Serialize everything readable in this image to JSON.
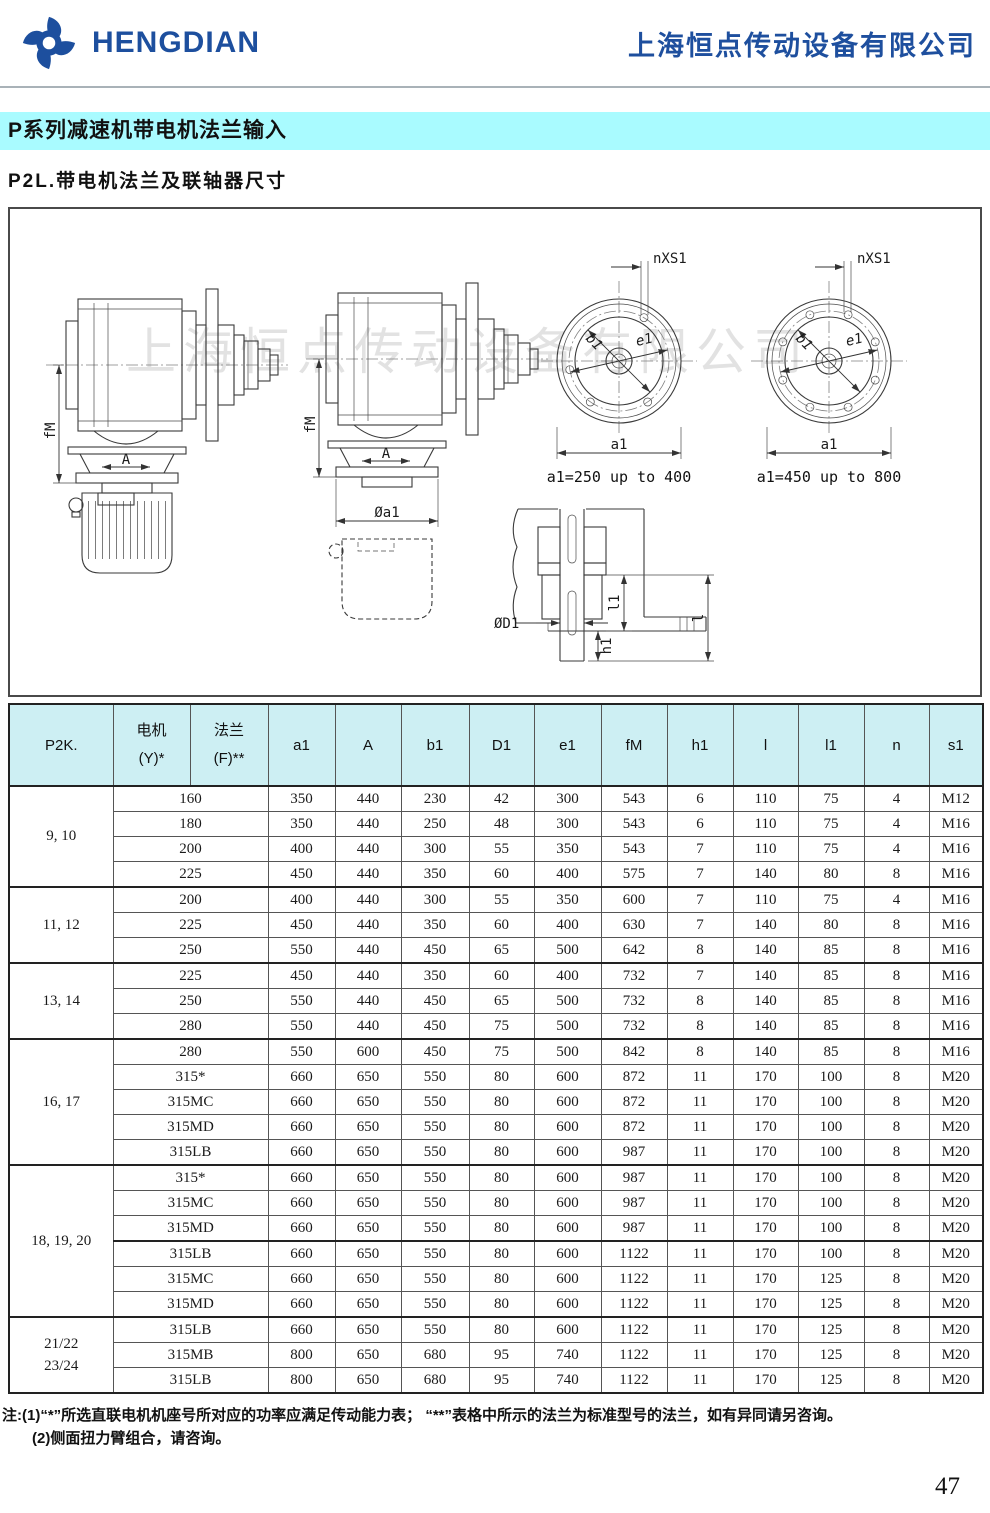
{
  "header": {
    "brand": "HENGDIAN",
    "company": "上海恒点传动设备有限公司"
  },
  "titles": {
    "banner": "P系列减速机带电机法兰输入",
    "subtitle": "P2L.带电机法兰及联轴器尺寸"
  },
  "diagram": {
    "watermark": "上海恒点传动设备有限公司",
    "labels": {
      "fM": "fM",
      "A": "A",
      "phi_a1": "Øa1",
      "nXS1": "nXS1",
      "b1": "b1",
      "e1": "e1",
      "a1": "a1",
      "phi_D1": "ØD1",
      "l1": "l1",
      "l": "l",
      "h1": "h1"
    },
    "captions": {
      "left": "a1=250 up to 400",
      "right": "a1=450 up to 800"
    }
  },
  "table": {
    "headers": {
      "p2k": "P2K.",
      "motor_line1": "电机",
      "motor_line2": "(Y)*",
      "flange_line1": "法兰",
      "flange_line2": "(F)**",
      "dims": [
        "a1",
        "A",
        "b1",
        "D1",
        "e1",
        "fM",
        "h1",
        "l",
        "l1",
        "n",
        "s1"
      ]
    },
    "groups": [
      {
        "label": "9, 10",
        "rows": [
          [
            "160",
            "350",
            "440",
            "230",
            "42",
            "300",
            "543",
            "6",
            "110",
            "75",
            "4",
            "M12"
          ],
          [
            "180",
            "350",
            "440",
            "250",
            "48",
            "300",
            "543",
            "6",
            "110",
            "75",
            "4",
            "M16"
          ],
          [
            "200",
            "400",
            "440",
            "300",
            "55",
            "350",
            "543",
            "7",
            "110",
            "75",
            "4",
            "M16"
          ],
          [
            "225",
            "450",
            "440",
            "350",
            "60",
            "400",
            "575",
            "7",
            "140",
            "80",
            "8",
            "M16"
          ]
        ]
      },
      {
        "label": "11, 12",
        "rows": [
          [
            "200",
            "400",
            "440",
            "300",
            "55",
            "350",
            "600",
            "7",
            "110",
            "75",
            "4",
            "M16"
          ],
          [
            "225",
            "450",
            "440",
            "350",
            "60",
            "400",
            "630",
            "7",
            "140",
            "80",
            "8",
            "M16"
          ],
          [
            "250",
            "550",
            "440",
            "450",
            "65",
            "500",
            "642",
            "8",
            "140",
            "85",
            "8",
            "M16"
          ]
        ]
      },
      {
        "label": "13, 14",
        "rows": [
          [
            "225",
            "450",
            "440",
            "350",
            "60",
            "400",
            "732",
            "7",
            "140",
            "85",
            "8",
            "M16"
          ],
          [
            "250",
            "550",
            "440",
            "450",
            "65",
            "500",
            "732",
            "8",
            "140",
            "85",
            "8",
            "M16"
          ],
          [
            "280",
            "550",
            "440",
            "450",
            "75",
            "500",
            "732",
            "8",
            "140",
            "85",
            "8",
            "M16"
          ]
        ]
      },
      {
        "label": "16, 17",
        "rows": [
          [
            "280",
            "550",
            "600",
            "450",
            "75",
            "500",
            "842",
            "8",
            "140",
            "85",
            "8",
            "M16"
          ],
          [
            "315*",
            "660",
            "650",
            "550",
            "80",
            "600",
            "872",
            "11",
            "170",
            "100",
            "8",
            "M20"
          ],
          [
            "315MC",
            "660",
            "650",
            "550",
            "80",
            "600",
            "872",
            "11",
            "170",
            "100",
            "8",
            "M20"
          ],
          [
            "315MD",
            "660",
            "650",
            "550",
            "80",
            "600",
            "872",
            "11",
            "170",
            "100",
            "8",
            "M20"
          ],
          [
            "315LB",
            "660",
            "650",
            "550",
            "80",
            "600",
            "987",
            "11",
            "170",
            "100",
            "8",
            "M20"
          ]
        ]
      },
      {
        "label": "18, 19, 20",
        "divider_after": 2,
        "rows": [
          [
            "315*",
            "660",
            "650",
            "550",
            "80",
            "600",
            "987",
            "11",
            "170",
            "100",
            "8",
            "M20"
          ],
          [
            "315MC",
            "660",
            "650",
            "550",
            "80",
            "600",
            "987",
            "11",
            "170",
            "100",
            "8",
            "M20"
          ],
          [
            "315MD",
            "660",
            "650",
            "550",
            "80",
            "600",
            "987",
            "11",
            "170",
            "100",
            "8",
            "M20"
          ],
          [
            "315LB",
            "660",
            "650",
            "550",
            "80",
            "600",
            "1122",
            "11",
            "170",
            "100",
            "8",
            "M20"
          ],
          [
            "315MC",
            "660",
            "650",
            "550",
            "80",
            "600",
            "1122",
            "11",
            "170",
            "125",
            "8",
            "M20"
          ],
          [
            "315MD",
            "660",
            "650",
            "550",
            "80",
            "600",
            "1122",
            "11",
            "170",
            "125",
            "8",
            "M20"
          ]
        ]
      },
      {
        "label": "21/22\n23/24",
        "rows": [
          [
            "315LB",
            "660",
            "650",
            "550",
            "80",
            "600",
            "1122",
            "11",
            "170",
            "125",
            "8",
            "M20"
          ],
          [
            "315MB",
            "800",
            "650",
            "680",
            "95",
            "740",
            "1122",
            "11",
            "170",
            "125",
            "8",
            "M20"
          ],
          [
            "315LB",
            "800",
            "650",
            "680",
            "95",
            "740",
            "1122",
            "11",
            "170",
            "125",
            "8",
            "M20"
          ]
        ]
      }
    ]
  },
  "notes": {
    "line1": "注:(1)“*”所选直联电机机座号所对应的功率应满足传动能力表； “**”表格中所示的法兰为标准型号的法兰，如有异同请另咨询。",
    "line2": "(2)侧面扭力臂组合，请咨询。"
  },
  "page_number": "47"
}
